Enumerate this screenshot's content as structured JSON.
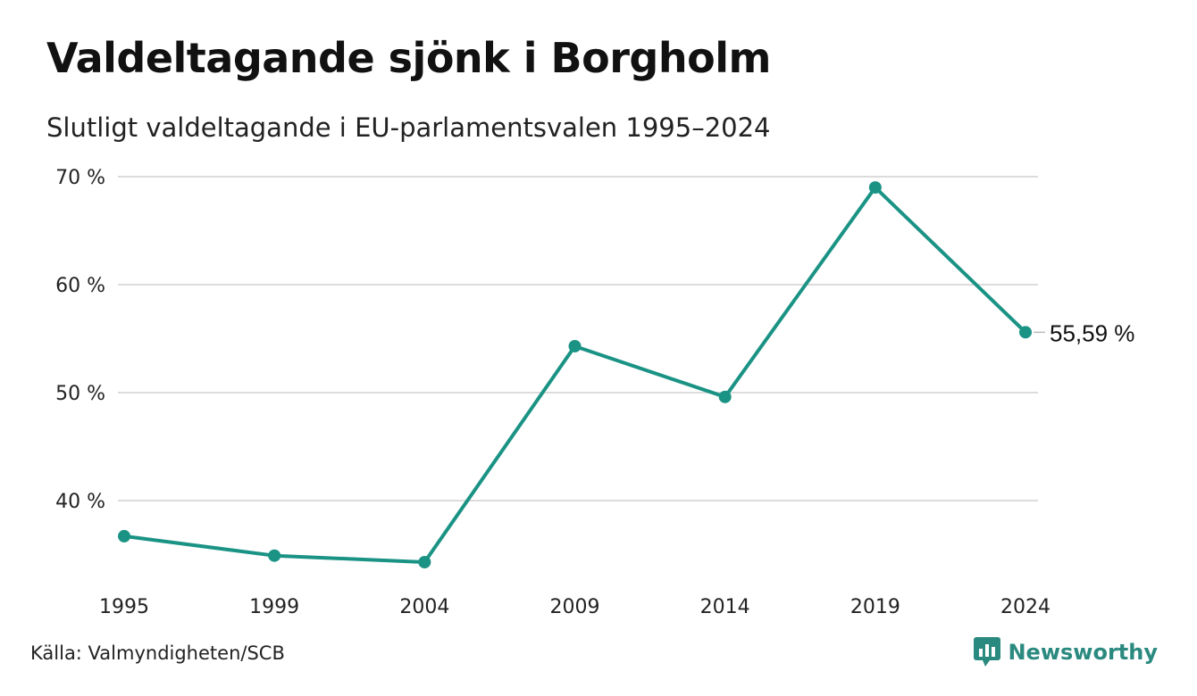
{
  "header": {
    "title": "Valdeltagande sjönk i Borgholm",
    "subtitle": "Slutligt valdeltagande i EU-parlamentsvalen 1995–2024"
  },
  "footer": {
    "source": "Källa: Valmyndigheten/SCB",
    "brand": "Newsworthy"
  },
  "colors": {
    "line": "#1a9385",
    "grid": "#dcdcdc",
    "brand": "#2b8a80"
  },
  "chart_data": {
    "type": "line",
    "title": "Valdeltagande sjönk i Borgholm",
    "subtitle": "Slutligt valdeltagande i EU-parlamentsvalen 1995–2024",
    "xlabel": "",
    "ylabel": "",
    "categories": [
      "1995",
      "1999",
      "2004",
      "2009",
      "2014",
      "2019",
      "2024"
    ],
    "series": [
      {
        "values": [
          36.7,
          34.9,
          34.3,
          54.3,
          49.6,
          69.0,
          55.59
        ]
      }
    ],
    "ylim": [
      33,
      70
    ],
    "yticks": [
      40,
      50,
      60,
      70
    ],
    "ytick_labels": [
      "40 %",
      "50 %",
      "60 %",
      "70 %"
    ],
    "end_label": "55,59 %",
    "grid": true,
    "legend": "none",
    "markers": true
  }
}
